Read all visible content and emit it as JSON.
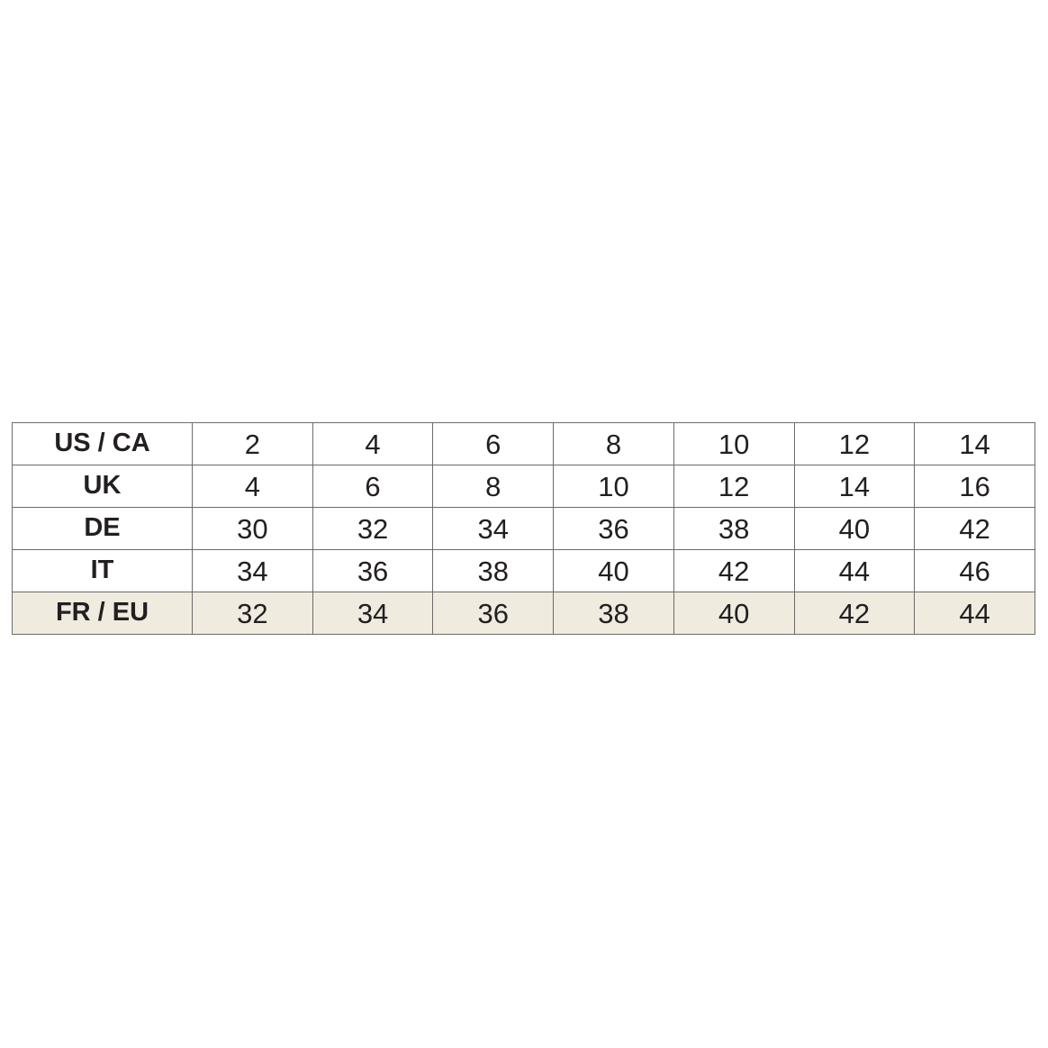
{
  "table": {
    "rows": [
      {
        "label": "US / CA",
        "values": [
          2,
          4,
          6,
          8,
          10,
          12,
          14
        ]
      },
      {
        "label": "UK",
        "values": [
          4,
          6,
          8,
          10,
          12,
          14,
          16
        ]
      },
      {
        "label": "DE",
        "values": [
          30,
          32,
          34,
          36,
          38,
          40,
          42
        ]
      },
      {
        "label": "IT",
        "values": [
          34,
          36,
          38,
          40,
          42,
          44,
          46
        ]
      },
      {
        "label": "FR / EU",
        "values": [
          32,
          34,
          36,
          38,
          40,
          42,
          44
        ]
      }
    ]
  }
}
